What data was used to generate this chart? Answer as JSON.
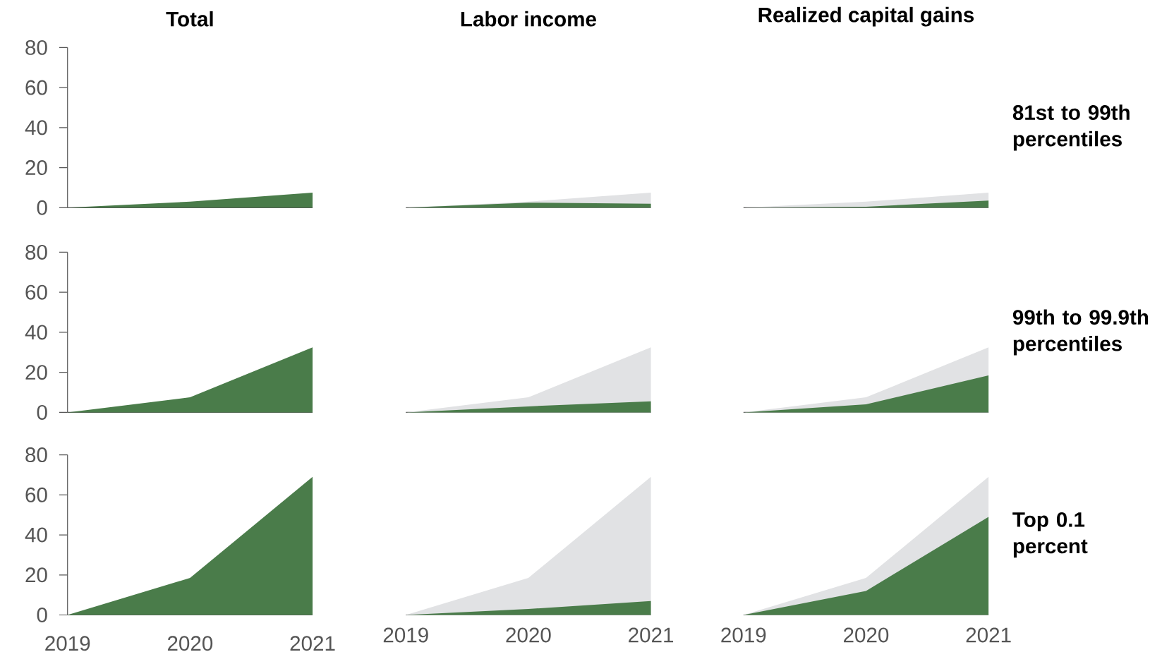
{
  "chart_data": [
    {
      "type": "area",
      "title": "Total",
      "x": [
        2019,
        2020,
        2021
      ],
      "xlim": [
        2019,
        2021
      ],
      "ylim": [
        0,
        80
      ],
      "yticks": [
        0,
        20,
        40,
        60,
        80
      ],
      "tick_labels": "y",
      "series": [
        {
          "color": "#4a7c4a",
          "values": [
            0,
            3,
            7.5
          ]
        }
      ]
    },
    {
      "type": "area",
      "title": "Labor income",
      "x": [
        2019,
        2020,
        2021
      ],
      "xlim": [
        2019,
        2021
      ],
      "ylim": [
        0,
        80
      ],
      "tick_labels": false,
      "series": [
        {
          "color": "#e1e2e4",
          "values": [
            0,
            3,
            7.5
          ]
        },
        {
          "color": "#4a7c4a",
          "values": [
            0,
            2.5,
            2
          ]
        }
      ]
    },
    {
      "type": "area",
      "title": "Realized capital gains",
      "x": [
        2019,
        2020,
        2021
      ],
      "xlim": [
        2019,
        2021
      ],
      "ylim": [
        0,
        80
      ],
      "tick_labels": false,
      "annotations": [
        "81st to 99th percentiles"
      ],
      "series": [
        {
          "color": "#e1e2e4",
          "values": [
            0,
            3,
            7.5
          ]
        },
        {
          "color": "#4a7c4a",
          "values": [
            0,
            0.5,
            3.5
          ]
        }
      ]
    },
    {
      "type": "area",
      "x": [
        2019,
        2020,
        2021
      ],
      "xlim": [
        2019,
        2021
      ],
      "ylim": [
        0,
        80
      ],
      "yticks": [
        0,
        20,
        40,
        60,
        80
      ],
      "tick_labels": "y",
      "series": [
        {
          "color": "#4a7c4a",
          "values": [
            0,
            7.5,
            32.5
          ]
        }
      ]
    },
    {
      "type": "area",
      "x": [
        2019,
        2020,
        2021
      ],
      "xlim": [
        2019,
        2021
      ],
      "ylim": [
        0,
        80
      ],
      "tick_labels": false,
      "series": [
        {
          "color": "#e1e2e4",
          "values": [
            0,
            7.5,
            32.5
          ]
        },
        {
          "color": "#4a7c4a",
          "values": [
            0,
            3,
            5.5
          ]
        }
      ]
    },
    {
      "type": "area",
      "x": [
        2019,
        2020,
        2021
      ],
      "xlim": [
        2019,
        2021
      ],
      "ylim": [
        0,
        80
      ],
      "tick_labels": false,
      "annotations": [
        "99th to 99.9th percentiles"
      ],
      "series": [
        {
          "color": "#e1e2e4",
          "values": [
            0,
            7.5,
            32.5
          ]
        },
        {
          "color": "#4a7c4a",
          "values": [
            0,
            4,
            18.5
          ]
        }
      ]
    },
    {
      "type": "area",
      "x": [
        2019,
        2020,
        2021
      ],
      "xlim": [
        2019,
        2021
      ],
      "xticks": [
        2019,
        2020,
        2021
      ],
      "ylim": [
        0,
        80
      ],
      "yticks": [
        0,
        20,
        40,
        60,
        80
      ],
      "series": [
        {
          "color": "#4a7c4a",
          "values": [
            0,
            18.5,
            69
          ]
        }
      ]
    },
    {
      "type": "area",
      "x": [
        2019,
        2020,
        2021
      ],
      "xlim": [
        2019,
        2021
      ],
      "xticks": [
        2019,
        2020,
        2021
      ],
      "ylim": [
        0,
        80
      ],
      "tick_labels": "x",
      "series": [
        {
          "color": "#e1e2e4",
          "values": [
            0,
            18.5,
            69
          ]
        },
        {
          "color": "#4a7c4a",
          "values": [
            0,
            3,
            7
          ]
        }
      ]
    },
    {
      "type": "area",
      "x": [
        2019,
        2020,
        2021
      ],
      "xlim": [
        2019,
        2021
      ],
      "xticks": [
        2019,
        2020,
        2021
      ],
      "ylim": [
        0,
        80
      ],
      "tick_labels": "x",
      "annotations": [
        "Top 0.1 percent"
      ],
      "series": [
        {
          "color": "#e1e2e4",
          "values": [
            0,
            18.5,
            69
          ]
        },
        {
          "color": "#4a7c4a",
          "values": [
            0,
            12,
            49
          ]
        }
      ]
    }
  ]
}
